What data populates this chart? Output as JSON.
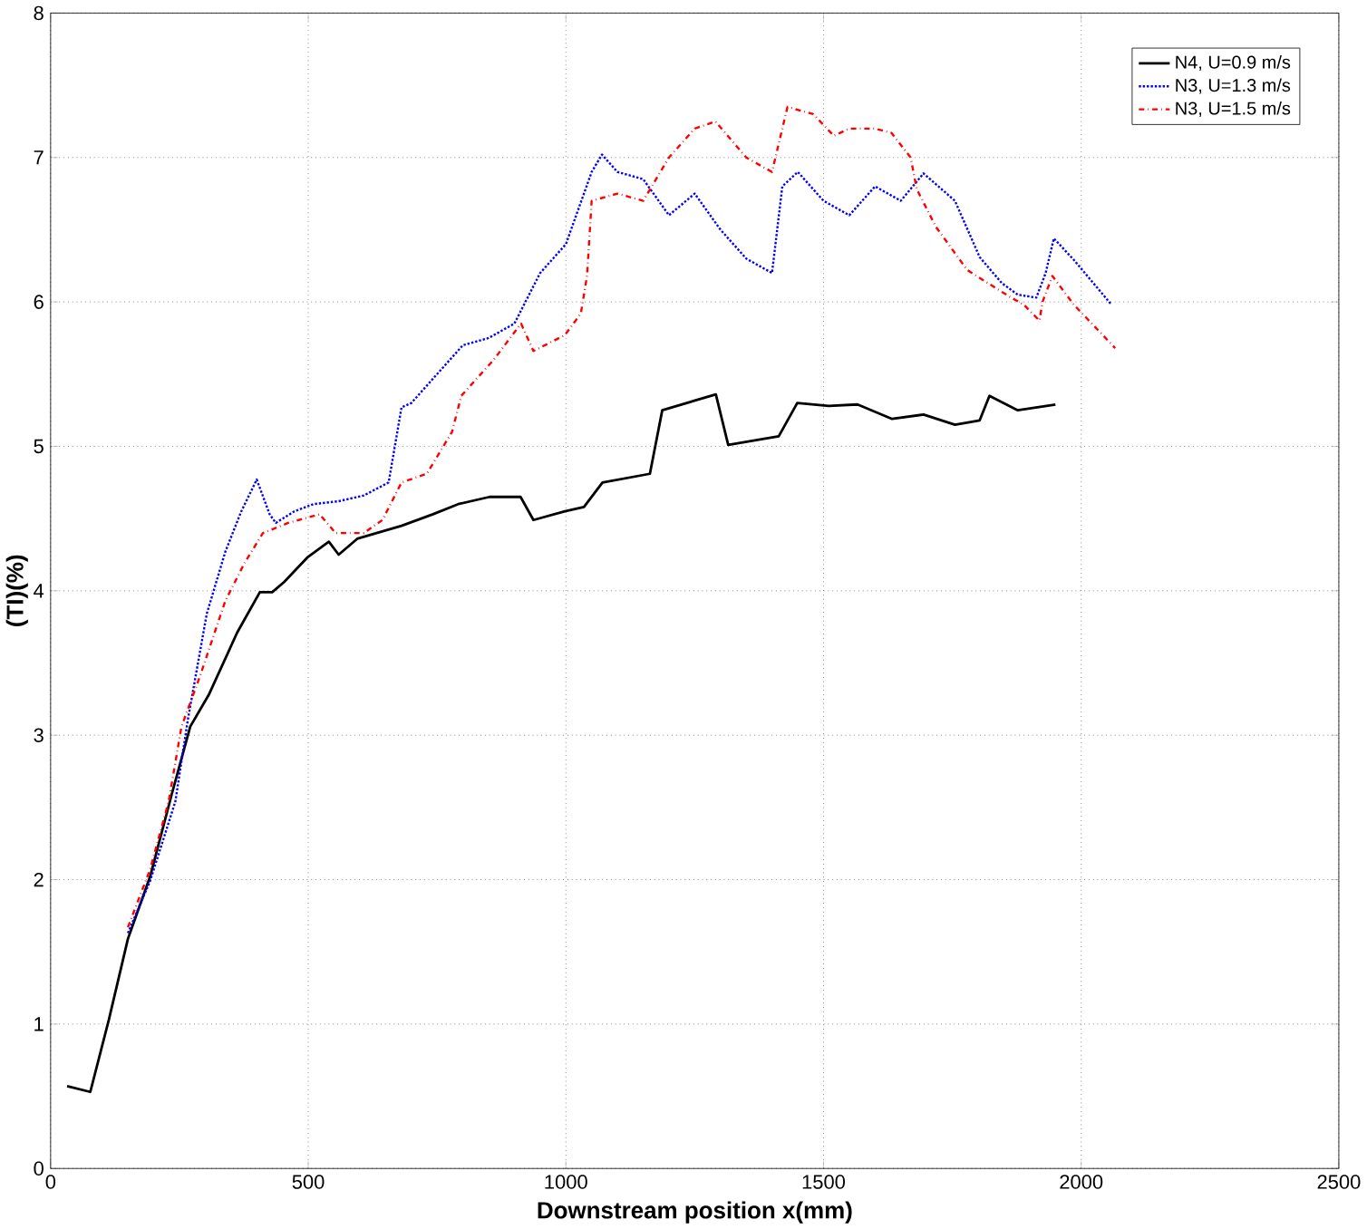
{
  "chart_data": {
    "type": "line",
    "xlabel": "Downstream position x(mm)",
    "ylabel": "(TI)(%)",
    "xlim": [
      0,
      2500
    ],
    "ylim": [
      0,
      8
    ],
    "xticks": [
      0,
      500,
      1000,
      1500,
      2000,
      2500
    ],
    "yticks": [
      0,
      1,
      2,
      3,
      4,
      5,
      6,
      7,
      8
    ],
    "grid": true,
    "legend": "top right",
    "series": [
      {
        "name": "N4, U=0.9 m/s",
        "color": "#000000",
        "line_style": "solid",
        "x": [
          32,
          77,
          113,
          150,
          193,
          235,
          271,
          307,
          362,
          406,
          430,
          453,
          498,
          540,
          559,
          595,
          681,
          742,
          791,
          852,
          912,
          937,
          998,
          1035,
          1071,
          1163,
          1187,
          1291,
          1315,
          1413,
          1449,
          1510,
          1566,
          1633,
          1694,
          1755,
          1803,
          1822,
          1877,
          1950
        ],
        "values": [
          0.57,
          0.53,
          1.03,
          1.59,
          2.02,
          2.59,
          3.06,
          3.28,
          3.71,
          3.99,
          3.99,
          4.06,
          4.23,
          4.34,
          4.25,
          4.36,
          4.45,
          4.53,
          4.6,
          4.65,
          4.65,
          4.49,
          4.55,
          4.58,
          4.75,
          4.81,
          5.25,
          5.36,
          5.01,
          5.07,
          5.3,
          5.28,
          5.29,
          5.19,
          5.22,
          5.15,
          5.18,
          5.35,
          5.25,
          5.29
        ]
      },
      {
        "name": "N3, U=1.3 m/s",
        "color": "#0000ff",
        "line_style": "dotted",
        "x": [
          150,
          193,
          242,
          266,
          303,
          339,
          370,
          400,
          425,
          437,
          473,
          510,
          559,
          608,
          656,
          681,
          700,
          800,
          850,
          900,
          950,
          1000,
          1050,
          1070,
          1100,
          1150,
          1200,
          1250,
          1300,
          1350,
          1400,
          1420,
          1450,
          1500,
          1550,
          1600,
          1650,
          1694,
          1755,
          1803,
          1846,
          1877,
          1913,
          1931,
          1947,
          1986,
          2059
        ],
        "values": [
          1.63,
          1.99,
          2.54,
          3.1,
          3.84,
          4.27,
          4.55,
          4.77,
          4.53,
          4.47,
          4.55,
          4.6,
          4.62,
          4.66,
          4.75,
          5.27,
          5.3,
          5.7,
          5.75,
          5.85,
          6.2,
          6.4,
          6.9,
          7.02,
          6.9,
          6.85,
          6.6,
          6.75,
          6.5,
          6.3,
          6.2,
          6.8,
          6.9,
          6.7,
          6.6,
          6.8,
          6.7,
          6.89,
          6.7,
          6.31,
          6.13,
          6.05,
          6.03,
          6.2,
          6.44,
          6.29,
          5.98
        ]
      },
      {
        "name": "N3, U=1.5 m/s",
        "color": "#ff0000",
        "line_style": "dashdotted",
        "x": [
          150,
          193,
          229,
          254,
          290,
          339,
          376,
          412,
          461,
          522,
          553,
          608,
          644,
          681,
          730,
          779,
          797,
          860,
          913,
          937,
          998,
          1029,
          1041,
          1050,
          1100,
          1150,
          1200,
          1250,
          1290,
          1350,
          1400,
          1430,
          1480,
          1520,
          1550,
          1600,
          1632,
          1669,
          1681,
          1718,
          1779,
          1828,
          1864,
          1889,
          1919,
          1925,
          1944,
          1986,
          2066
        ],
        "values": [
          1.67,
          2.07,
          2.54,
          3.06,
          3.41,
          3.93,
          4.19,
          4.4,
          4.47,
          4.53,
          4.4,
          4.4,
          4.49,
          4.75,
          4.81,
          5.1,
          5.35,
          5.6,
          5.85,
          5.66,
          5.77,
          5.92,
          6.18,
          6.7,
          6.75,
          6.7,
          7.0,
          7.2,
          7.25,
          7.0,
          6.9,
          7.35,
          7.3,
          7.15,
          7.2,
          7.2,
          7.17,
          7.0,
          6.78,
          6.52,
          6.22,
          6.11,
          6.03,
          5.98,
          5.87,
          6.0,
          6.18,
          5.98,
          5.68
        ]
      }
    ]
  }
}
